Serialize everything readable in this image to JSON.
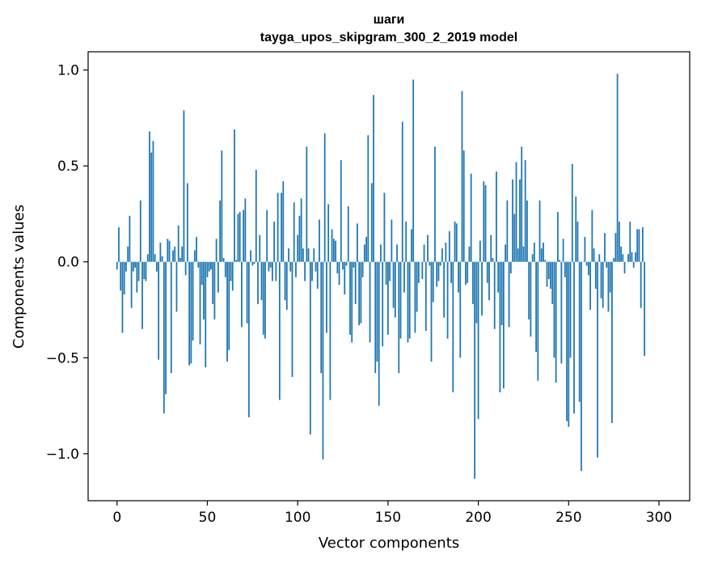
{
  "chart_data": {
    "type": "bar",
    "title": "шаги",
    "subtitle": "tayga_upos_skipgram_300_2_2019 model",
    "xlabel": "Vector components",
    "ylabel": "Components values",
    "xlim": [
      -16,
      317
    ],
    "ylim": [
      -1.245,
      1.095
    ],
    "x_ticks": [
      0,
      50,
      100,
      150,
      200,
      250,
      300
    ],
    "x_tick_labels": [
      "0",
      "50",
      "100",
      "150",
      "200",
      "250",
      "300"
    ],
    "y_ticks": [
      -1.0,
      -0.5,
      0.0,
      0.5,
      1.0
    ],
    "y_tick_labels": [
      "−1.0",
      "−0.5",
      "0.0",
      "0.5",
      "1.0"
    ],
    "bar_color": "#1f77b4",
    "grid": false,
    "values": [
      -0.04,
      0.18,
      -0.15,
      -0.37,
      -0.17,
      -0.05,
      0.08,
      0.24,
      -0.24,
      -0.05,
      -0.03,
      -0.16,
      -0.1,
      0.32,
      -0.35,
      -0.09,
      -0.1,
      0.04,
      0.68,
      0.57,
      0.63,
      0.04,
      -0.05,
      -0.51,
      0.1,
      0.03,
      -0.79,
      -0.69,
      0.12,
      0.11,
      -0.58,
      0.06,
      0.08,
      -0.26,
      0.19,
      0.02,
      0.08,
      0.79,
      -0.07,
      0.41,
      -0.54,
      -0.53,
      -0.41,
      0.06,
      0.13,
      -0.03,
      -0.43,
      -0.12,
      -0.3,
      -0.55,
      -0.08,
      -0.05,
      -0.04,
      -0.22,
      -0.3,
      0.12,
      -0.16,
      0.32,
      0.58,
      0.02,
      -0.08,
      -0.52,
      -0.46,
      -0.1,
      -0.15,
      0.69,
      0.01,
      0.25,
      0.26,
      -0.34,
      0.27,
      0.33,
      -0.32,
      -0.81,
      0.06,
      -0.02,
      -0.01,
      0.48,
      -0.22,
      0.14,
      -0.2,
      -0.38,
      -0.4,
      0.27,
      -0.05,
      -0.03,
      -0.1,
      0.21,
      -0.1,
      0.36,
      -0.72,
      0.36,
      0.42,
      -0.2,
      -0.25,
      0.07,
      -0.05,
      -0.6,
      0.31,
      -0.08,
      0.14,
      0.24,
      0.33,
      0.07,
      -0.1,
      0.6,
      0.07,
      -0.9,
      -0.1,
      0.07,
      -0.05,
      -0.14,
      0.22,
      -0.58,
      -1.03,
      0.67,
      -0.37,
      0.3,
      -0.72,
      0.17,
      0.12,
      0.11,
      -0.06,
      -0.12,
      0.53,
      -0.04,
      -0.17,
      -0.02,
      0.29,
      -0.38,
      -0.42,
      -0.03,
      -0.22,
      0.2,
      -0.33,
      -0.32,
      -0.08,
      0.09,
      0.13,
      0.66,
      -0.42,
      0.41,
      0.87,
      -0.58,
      -0.52,
      -0.75,
      0.09,
      -0.44,
      0.36,
      -0.12,
      -0.38,
      -0.1,
      0.22,
      -0.24,
      -0.29,
      0.09,
      -0.58,
      -0.4,
      0.73,
      -0.16,
      0.21,
      -0.42,
      -0.4,
      0.17,
      0.95,
      -0.37,
      -0.26,
      -0.11,
      0.0,
      -0.09,
      0.09,
      -0.36,
      0.14,
      -0.02,
      -0.52,
      -0.21,
      0.6,
      -0.13,
      -0.1,
      -0.02,
      0.07,
      -0.29,
      0.1,
      -0.4,
      0.16,
      -0.11,
      -0.68,
      0.21,
      0.2,
      -0.16,
      -0.5,
      0.89,
      0.58,
      -0.12,
      -0.11,
      0.08,
      0.46,
      -0.22,
      -1.13,
      -0.32,
      -0.82,
      0.11,
      -0.28,
      0.42,
      0.4,
      -0.11,
      -0.2,
      0.14,
      0.02,
      -0.35,
      0.47,
      -0.16,
      -0.68,
      -0.33,
      -0.66,
      0.09,
      0.32,
      -0.34,
      -0.06,
      0.43,
      0.25,
      0.52,
      0.07,
      0.43,
      0.6,
      0.08,
      0.53,
      0.32,
      -0.3,
      -0.39,
      0.04,
      0.1,
      -0.47,
      -0.62,
      0.32,
      0.07,
      0.1,
      0.01,
      -0.13,
      -0.09,
      -0.14,
      -0.22,
      -0.5,
      -0.63,
      0.26,
      0.01,
      -0.53,
      0.12,
      -0.08,
      -0.83,
      -0.86,
      -0.5,
      0.51,
      -0.79,
      0.34,
      0.21,
      -0.73,
      -1.09,
      0.0,
      0.13,
      -0.02,
      -0.07,
      -0.25,
      0.27,
      0.07,
      -0.14,
      -1.02,
      0.04,
      -0.19,
      -0.24,
      0.15,
      -0.03,
      -0.26,
      -0.16,
      -0.84,
      0.02,
      0.15,
      0.98,
      0.21,
      0.08,
      0.04,
      -0.06,
      0.0,
      0.04,
      0.21,
      0.05,
      -0.03,
      0.05,
      0.17,
      0.17,
      -0.24,
      0.18,
      -0.49
    ]
  }
}
